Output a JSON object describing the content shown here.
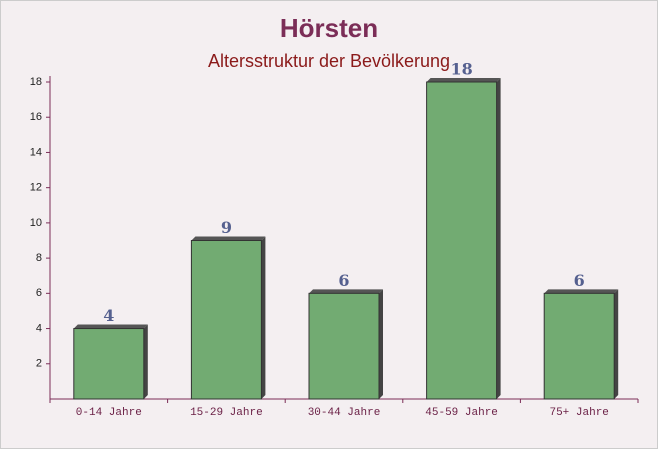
{
  "chart_data": {
    "type": "bar",
    "title": "Hörsten",
    "subtitle": "Altersstruktur der Bevölkerung",
    "categories": [
      "0-14 Jahre",
      "15-29 Jahre",
      "30-44 Jahre",
      "45-59 Jahre",
      "75+ Jahre"
    ],
    "values": [
      4,
      9,
      6,
      18,
      6
    ],
    "color": "#6aa66a",
    "ylim": [
      0,
      18
    ],
    "yticks": [
      2,
      4,
      6,
      8,
      10,
      12,
      14,
      16,
      18
    ]
  }
}
